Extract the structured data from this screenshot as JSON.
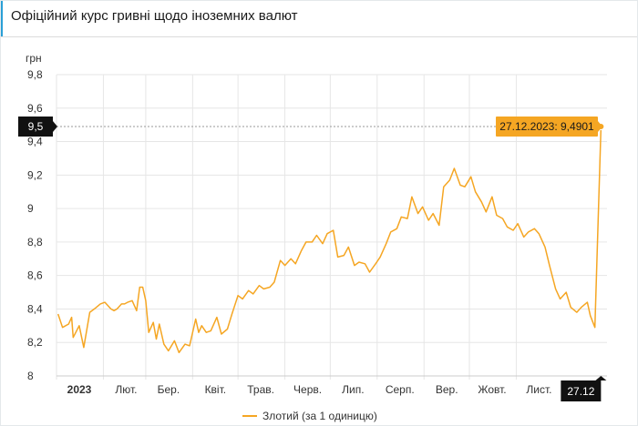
{
  "header": {
    "title": "Офіційний курс гривні щодо іноземних валют"
  },
  "colors": {
    "series": "#f5a623",
    "grid": "#e6e6e6",
    "tooltip_bg": "#f5a623",
    "crosshair_bg": "#111111"
  },
  "chart_data": {
    "type": "line",
    "ylabel": "грн",
    "ylim": [
      8,
      9.8
    ],
    "yticks": [
      "8",
      "8,2",
      "8,4",
      "8,6",
      "8,8",
      "9",
      "9,2",
      "9,4",
      "9,6",
      "9,8"
    ],
    "x_range": [
      "2023-01-01",
      "2023-12-31"
    ],
    "xticks": [
      {
        "label": "2023",
        "date": "2023-01-01"
      },
      {
        "label": "Лют.",
        "date": "2023-02-01"
      },
      {
        "label": "Бер.",
        "date": "2023-03-01"
      },
      {
        "label": "Квіт.",
        "date": "2023-04-01"
      },
      {
        "label": "Трав.",
        "date": "2023-05-01"
      },
      {
        "label": "Черв.",
        "date": "2023-06-01"
      },
      {
        "label": "Лип.",
        "date": "2023-07-01"
      },
      {
        "label": "Серп.",
        "date": "2023-08-01"
      },
      {
        "label": "Вер.",
        "date": "2023-09-01"
      },
      {
        "label": "Жовт.",
        "date": "2023-10-01"
      },
      {
        "label": "Лист.",
        "date": "2023-11-01"
      }
    ],
    "grid": true,
    "legend_position": "bottom-center",
    "series": [
      {
        "name": "Злотий (за 1 одиницю)",
        "points": [
          [
            "2023-01-02",
            8.37
          ],
          [
            "2023-01-05",
            8.29
          ],
          [
            "2023-01-09",
            8.31
          ],
          [
            "2023-01-11",
            8.35
          ],
          [
            "2023-01-12",
            8.23
          ],
          [
            "2023-01-16",
            8.3
          ],
          [
            "2023-01-19",
            8.17
          ],
          [
            "2023-01-23",
            8.38
          ],
          [
            "2023-01-26",
            8.4
          ],
          [
            "2023-01-30",
            8.43
          ],
          [
            "2023-02-02",
            8.44
          ],
          [
            "2023-02-06",
            8.4
          ],
          [
            "2023-02-08",
            8.39
          ],
          [
            "2023-02-10",
            8.4
          ],
          [
            "2023-02-13",
            8.43
          ],
          [
            "2023-02-15",
            8.43
          ],
          [
            "2023-02-17",
            8.44
          ],
          [
            "2023-02-20",
            8.45
          ],
          [
            "2023-02-23",
            8.39
          ],
          [
            "2023-02-25",
            8.53
          ],
          [
            "2023-02-27",
            8.53
          ],
          [
            "2023-03-01",
            8.45
          ],
          [
            "2023-03-03",
            8.26
          ],
          [
            "2023-03-06",
            8.32
          ],
          [
            "2023-03-08",
            8.22
          ],
          [
            "2023-03-10",
            8.31
          ],
          [
            "2023-03-13",
            8.19
          ],
          [
            "2023-03-16",
            8.15
          ],
          [
            "2023-03-20",
            8.21
          ],
          [
            "2023-03-23",
            8.14
          ],
          [
            "2023-03-27",
            8.19
          ],
          [
            "2023-03-30",
            8.18
          ],
          [
            "2023-04-03",
            8.34
          ],
          [
            "2023-04-05",
            8.26
          ],
          [
            "2023-04-07",
            8.3
          ],
          [
            "2023-04-10",
            8.26
          ],
          [
            "2023-04-13",
            8.27
          ],
          [
            "2023-04-17",
            8.35
          ],
          [
            "2023-04-20",
            8.25
          ],
          [
            "2023-04-24",
            8.28
          ],
          [
            "2023-04-27",
            8.37
          ],
          [
            "2023-05-01",
            8.48
          ],
          [
            "2023-05-04",
            8.46
          ],
          [
            "2023-05-08",
            8.51
          ],
          [
            "2023-05-11",
            8.49
          ],
          [
            "2023-05-15",
            8.54
          ],
          [
            "2023-05-18",
            8.52
          ],
          [
            "2023-05-22",
            8.53
          ],
          [
            "2023-05-25",
            8.56
          ],
          [
            "2023-05-29",
            8.69
          ],
          [
            "2023-06-01",
            8.66
          ],
          [
            "2023-06-05",
            8.7
          ],
          [
            "2023-06-08",
            8.67
          ],
          [
            "2023-06-12",
            8.75
          ],
          [
            "2023-06-15",
            8.8
          ],
          [
            "2023-06-19",
            8.8
          ],
          [
            "2023-06-22",
            8.84
          ],
          [
            "2023-06-26",
            8.79
          ],
          [
            "2023-06-29",
            8.85
          ],
          [
            "2023-07-03",
            8.87
          ],
          [
            "2023-07-06",
            8.71
          ],
          [
            "2023-07-10",
            8.72
          ],
          [
            "2023-07-13",
            8.77
          ],
          [
            "2023-07-17",
            8.66
          ],
          [
            "2023-07-20",
            8.68
          ],
          [
            "2023-07-24",
            8.67
          ],
          [
            "2023-07-27",
            8.62
          ],
          [
            "2023-07-31",
            8.67
          ],
          [
            "2023-08-03",
            8.71
          ],
          [
            "2023-08-07",
            8.79
          ],
          [
            "2023-08-10",
            8.86
          ],
          [
            "2023-08-14",
            8.88
          ],
          [
            "2023-08-17",
            8.95
          ],
          [
            "2023-08-21",
            8.94
          ],
          [
            "2023-08-24",
            9.07
          ],
          [
            "2023-08-28",
            8.97
          ],
          [
            "2023-08-31",
            9.01
          ],
          [
            "2023-09-04",
            8.93
          ],
          [
            "2023-09-07",
            8.97
          ],
          [
            "2023-09-11",
            8.9
          ],
          [
            "2023-09-14",
            9.13
          ],
          [
            "2023-09-18",
            9.17
          ],
          [
            "2023-09-21",
            9.24
          ],
          [
            "2023-09-25",
            9.14
          ],
          [
            "2023-09-28",
            9.13
          ],
          [
            "2023-10-02",
            9.19
          ],
          [
            "2023-10-05",
            9.1
          ],
          [
            "2023-10-09",
            9.04
          ],
          [
            "2023-10-12",
            8.98
          ],
          [
            "2023-10-16",
            9.07
          ],
          [
            "2023-10-19",
            8.96
          ],
          [
            "2023-10-23",
            8.94
          ],
          [
            "2023-10-26",
            8.89
          ],
          [
            "2023-10-30",
            8.87
          ],
          [
            "2023-11-02",
            8.91
          ],
          [
            "2023-11-06",
            8.83
          ],
          [
            "2023-11-09",
            8.86
          ],
          [
            "2023-11-13",
            8.88
          ],
          [
            "2023-11-16",
            8.85
          ],
          [
            "2023-11-20",
            8.77
          ],
          [
            "2023-11-23",
            8.66
          ],
          [
            "2023-11-27",
            8.52
          ],
          [
            "2023-11-30",
            8.46
          ],
          [
            "2023-12-04",
            8.5
          ],
          [
            "2023-12-07",
            8.41
          ],
          [
            "2023-12-11",
            8.38
          ],
          [
            "2023-12-14",
            8.41
          ],
          [
            "2023-12-18",
            8.44
          ],
          [
            "2023-12-20",
            8.36
          ],
          [
            "2023-12-23",
            8.29
          ],
          [
            "2023-12-27",
            9.49
          ]
        ]
      }
    ],
    "crosshair": {
      "y_label": "9,5",
      "x_label": "27.12",
      "tooltip": "27.12.2023: 9,4901"
    }
  }
}
